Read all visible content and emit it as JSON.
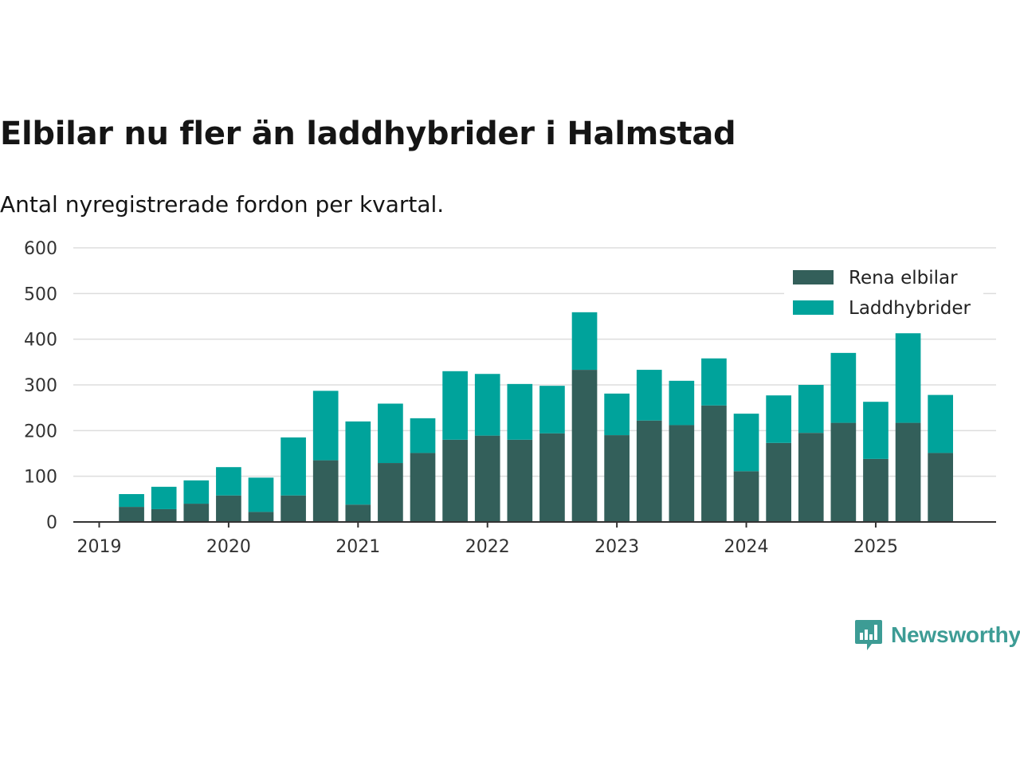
{
  "title": "Elbilar nu fler än laddhybrider i Halmstad",
  "subtitle": "Antal nyregistrerade fordon per kvartal.",
  "logo": {
    "text": "Newsworthy",
    "icon": "bar-chart-speech-bubble-icon"
  },
  "colors": {
    "bev": "#335f5a",
    "phev": "#00a39b",
    "grid": "#dddddd",
    "axis": "#333333",
    "brand": "#3d9c95"
  },
  "chart_data": {
    "type": "bar",
    "stacked": true,
    "x": [
      2019.25,
      2019.5,
      2019.75,
      2020.0,
      2020.25,
      2020.5,
      2020.75,
      2021.0,
      2021.25,
      2021.5,
      2021.75,
      2022.0,
      2022.25,
      2022.5,
      2022.75,
      2023.0,
      2023.25,
      2023.5,
      2023.75,
      2024.0,
      2024.25,
      2024.5,
      2024.75,
      2025.0,
      2025.25,
      2025.5
    ],
    "series": [
      {
        "name": "Rena elbilar",
        "values": [
          33,
          28,
          40,
          58,
          22,
          58,
          135,
          38,
          129,
          151,
          180,
          189,
          180,
          194,
          333,
          190,
          222,
          212,
          255,
          111,
          173,
          195,
          217,
          138,
          217,
          151
        ]
      },
      {
        "name": "Laddhybrider",
        "values": [
          28,
          49,
          51,
          62,
          75,
          127,
          152,
          182,
          130,
          76,
          150,
          135,
          122,
          104,
          126,
          91,
          111,
          97,
          103,
          126,
          104,
          105,
          153,
          125,
          196,
          127
        ]
      }
    ],
    "xticks": [
      "2019",
      "2020",
      "2021",
      "2022",
      "2023",
      "2024",
      "2025"
    ],
    "xtick_values": [
      2019,
      2020,
      2021,
      2022,
      2023,
      2024,
      2025
    ],
    "yticks": [
      "0",
      "100",
      "200",
      "300",
      "400",
      "500",
      "600"
    ],
    "ytick_values": [
      0,
      100,
      200,
      300,
      400,
      500,
      600
    ],
    "xlim": [
      2018.8,
      2025.93
    ],
    "ylim": [
      0,
      600
    ],
    "xlabel": "",
    "ylabel": "",
    "grid": true,
    "legend_position": "top-right"
  }
}
